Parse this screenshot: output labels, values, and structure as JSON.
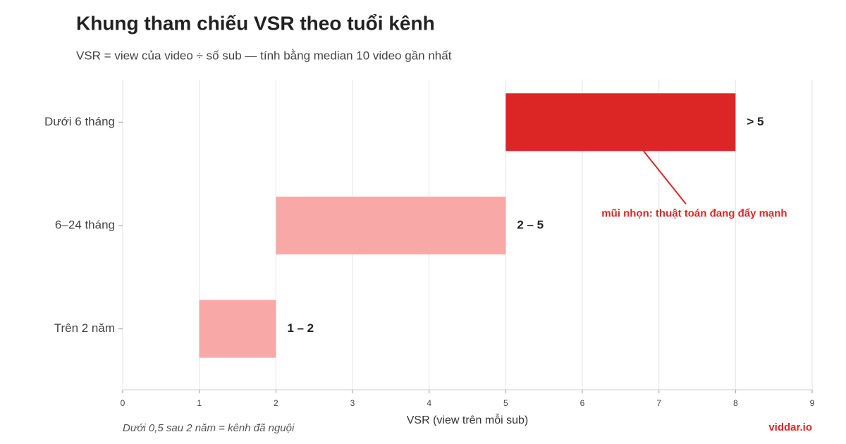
{
  "chart_data": {
    "type": "range-bar",
    "title": "Khung tham chiếu VSR theo tuổi kênh",
    "subtitle": "VSR = view của video ÷ số sub — tính bằng median 10 video gần nhất",
    "categories": [
      "Dưới 6 tháng",
      "6–24 tháng",
      "Trên 2 năm"
    ],
    "starts": [
      5,
      2,
      1
    ],
    "ends": [
      8,
      5,
      2
    ],
    "value_labels": [
      "> 5",
      "2 – 5",
      "1 – 2"
    ],
    "colors": [
      "#dc2626",
      "#f9a8a8",
      "#f9a8a8"
    ],
    "xlabel": "VSR (view trên mỗi sub)",
    "xlim": [
      0,
      9
    ],
    "xticks": [
      0,
      1,
      2,
      3,
      4,
      5,
      6,
      7,
      8,
      9
    ],
    "grid": true,
    "annotation": {
      "text": "mũi nhọn: thuật toán đang đẩy mạnh",
      "color": "#dc2626"
    },
    "footnote": "Dưới 0,5 sau 2 năm = kênh đã nguội",
    "brand": "viddar.io"
  }
}
